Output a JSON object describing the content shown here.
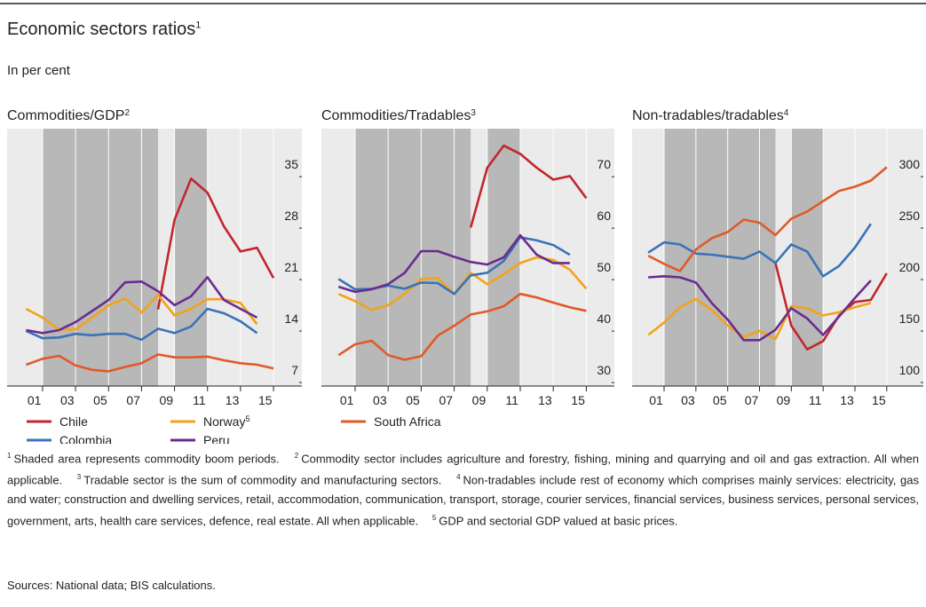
{
  "header": {
    "title": "Economic sectors ratios",
    "title_note": "1",
    "subtitle": "In per cent"
  },
  "chart_data": [
    {
      "type": "line",
      "title": "Commodities/GDP",
      "title_note": "2",
      "x": [
        2000,
        2001,
        2002,
        2003,
        2004,
        2005,
        2006,
        2007,
        2008,
        2009,
        2010,
        2011,
        2012,
        2013,
        2014,
        2015
      ],
      "xlim": [
        1998.85,
        2016.72
      ],
      "xticks": [
        {
          "value": 2001,
          "label": "01"
        },
        {
          "value": 2003,
          "label": "03"
        },
        {
          "value": 2005,
          "label": "05"
        },
        {
          "value": 2007,
          "label": "07"
        },
        {
          "value": 2009,
          "label": "09"
        },
        {
          "value": 2011,
          "label": "11"
        },
        {
          "value": 2013,
          "label": "13"
        },
        {
          "value": 2015,
          "label": "15"
        }
      ],
      "ylim": [
        5.8,
        40.8
      ],
      "yticks": [
        7,
        14,
        21,
        28,
        35
      ],
      "y_axis_side": "right",
      "grid": true,
      "shaded": [
        [
          2001,
          2008
        ],
        [
          2009,
          2011
        ]
      ],
      "series": [
        {
          "name": "Chile",
          "color": "#c1272d",
          "values": [
            null,
            null,
            null,
            null,
            null,
            null,
            null,
            null,
            16.2,
            28.4,
            34.0,
            32.1,
            27.5,
            24.1,
            24.6,
            20.5
          ]
        },
        {
          "name": "Norway",
          "name_note": "5",
          "color": "#f2a31b",
          "values": [
            16.3,
            15.1,
            13.5,
            13.5,
            15.1,
            16.8,
            17.7,
            15.8,
            18.2,
            15.4,
            16.3,
            17.6,
            17.6,
            17.1,
            14.2,
            null
          ]
        },
        {
          "name": "Colombia",
          "color": "#3a73b6",
          "values": [
            13.3,
            12.3,
            12.4,
            12.9,
            12.7,
            12.9,
            12.9,
            12.1,
            13.6,
            13.0,
            13.9,
            16.3,
            15.7,
            14.6,
            13.0,
            null
          ]
        },
        {
          "name": "Peru",
          "color": "#6b2c8f",
          "values": [
            13.4,
            13.0,
            13.4,
            14.5,
            16.0,
            17.5,
            19.9,
            20.0,
            18.7,
            16.8,
            18.0,
            20.6,
            17.5,
            16.3,
            15.1,
            null
          ]
        },
        {
          "color": "#e05a28",
          "values": [
            8.7,
            9.5,
            9.9,
            8.6,
            8.0,
            7.8,
            8.4,
            8.9,
            10.1,
            9.7,
            9.7,
            9.8,
            9.3,
            8.9,
            8.7,
            8.2
          ]
        }
      ]
    },
    {
      "type": "line",
      "title": "Commodities/Tradables",
      "title_note": "3",
      "x": [
        2000,
        2001,
        2002,
        2003,
        2004,
        2005,
        2006,
        2007,
        2008,
        2009,
        2010,
        2011,
        2012,
        2013,
        2014,
        2015
      ],
      "xlim": [
        1998.96,
        2016.7
      ],
      "xticks": [
        {
          "value": 2001,
          "label": "01"
        },
        {
          "value": 2003,
          "label": "03"
        },
        {
          "value": 2005,
          "label": "05"
        },
        {
          "value": 2007,
          "label": "07"
        },
        {
          "value": 2009,
          "label": "09"
        },
        {
          "value": 2011,
          "label": "11"
        },
        {
          "value": 2013,
          "label": "13"
        },
        {
          "value": 2015,
          "label": "15"
        }
      ],
      "ylim": [
        28.3,
        78.3
      ],
      "yticks": [
        30,
        40,
        50,
        60,
        70
      ],
      "y_axis_side": "right",
      "grid": true,
      "shaded": [
        [
          2001,
          2008
        ],
        [
          2009,
          2011
        ]
      ],
      "series": [
        {
          "color": "#c1272d",
          "values": [
            null,
            null,
            null,
            null,
            null,
            null,
            null,
            null,
            59.1,
            70.7,
            75.0,
            73.4,
            70.7,
            68.4,
            69.1,
            64.8
          ]
        },
        {
          "color": "#f2a31b",
          "values": [
            46.2,
            44.8,
            43.1,
            44.0,
            46.2,
            49.1,
            49.3,
            46.2,
            50.3,
            48.1,
            50.0,
            52.2,
            53.3,
            52.8,
            50.9,
            47.2
          ]
        },
        {
          "color": "#3a73b6",
          "values": [
            49.1,
            47.1,
            47.2,
            47.8,
            47.2,
            48.4,
            48.3,
            46.2,
            49.8,
            50.3,
            52.6,
            57.2,
            56.6,
            55.7,
            53.8,
            null
          ]
        },
        {
          "color": "#6b2c8f",
          "values": [
            47.6,
            46.6,
            47.1,
            48.1,
            50.3,
            54.5,
            54.5,
            53.4,
            52.4,
            51.9,
            53.3,
            57.6,
            53.8,
            52.2,
            52.2,
            null
          ]
        },
        {
          "name": "South Africa",
          "color": "#e05a28",
          "values": [
            34.3,
            36.4,
            37.1,
            34.3,
            33.4,
            34.1,
            38.1,
            40.0,
            42.2,
            42.8,
            43.8,
            46.2,
            45.5,
            44.5,
            43.6,
            42.9
          ]
        }
      ]
    },
    {
      "type": "line",
      "title": "Non-tradables/tradables",
      "title_note": "4",
      "x": [
        2000,
        2001,
        2002,
        2003,
        2004,
        2005,
        2006,
        2007,
        2008,
        2009,
        2010,
        2011,
        2012,
        2013,
        2014,
        2015
      ],
      "xlim": [
        1998.99,
        2017.3
      ],
      "xticks": [
        {
          "value": 2001,
          "label": "01"
        },
        {
          "value": 2003,
          "label": "03"
        },
        {
          "value": 2005,
          "label": "05"
        },
        {
          "value": 2007,
          "label": "07"
        },
        {
          "value": 2009,
          "label": "09"
        },
        {
          "value": 2011,
          "label": "11"
        },
        {
          "value": 2013,
          "label": "13"
        },
        {
          "value": 2015,
          "label": "15"
        }
      ],
      "ylim": [
        91.4,
        341.4
      ],
      "yticks": [
        100,
        150,
        200,
        250,
        300
      ],
      "y_axis_side": "right",
      "grid": true,
      "shaded": [
        [
          2001,
          2008
        ],
        [
          2009,
          2011
        ]
      ],
      "series": [
        {
          "color": "#c1272d",
          "values": [
            null,
            null,
            null,
            null,
            null,
            null,
            null,
            null,
            211,
            150,
            127,
            135,
            160,
            173,
            175,
            201
          ]
        },
        {
          "color": "#f2a31b",
          "values": [
            141,
            153,
            168,
            176,
            165,
            150,
            139,
            145,
            137,
            169,
            167,
            160,
            163,
            168,
            172,
            null
          ]
        },
        {
          "color": "#3a73b6",
          "values": [
            221,
            231,
            229,
            220,
            219,
            217,
            215,
            222,
            211,
            229,
            222,
            198,
            208,
            226,
            249,
            null
          ]
        },
        {
          "color": "#6b2c8f",
          "values": [
            197,
            198,
            197,
            192,
            172,
            156,
            136,
            136,
            146,
            167,
            157,
            141,
            159,
            177,
            194,
            null
          ]
        },
        {
          "color": "#e05a28",
          "values": [
            218,
            210,
            203,
            224,
            235,
            241,
            253,
            250,
            238,
            254,
            261,
            271,
            281,
            285,
            291,
            304
          ]
        }
      ]
    }
  ],
  "footnotes": [
    {
      "mark": "1",
      "text": "Shaded area represents commodity boom periods."
    },
    {
      "mark": "2",
      "text": "Commodity sector includes agriculture and forestry, fishing, mining and quarrying and oil and gas extraction. All when applicable."
    },
    {
      "mark": "3",
      "text": "Tradable sector is the sum of commodity and manufacturing sectors."
    },
    {
      "mark": "4",
      "text": "Non-tradables include rest of economy which comprises mainly services: electricity, gas and water; construction and dwelling services, retail, accommodation, communication, transport, storage, courier services, financial services, business services, personal services, government, arts, health care services, defence, real estate. All when applicable."
    },
    {
      "mark": "5",
      "text": "GDP and sectorial GDP valued at basic prices."
    }
  ],
  "sources": "Sources: National data; BIS calculations."
}
